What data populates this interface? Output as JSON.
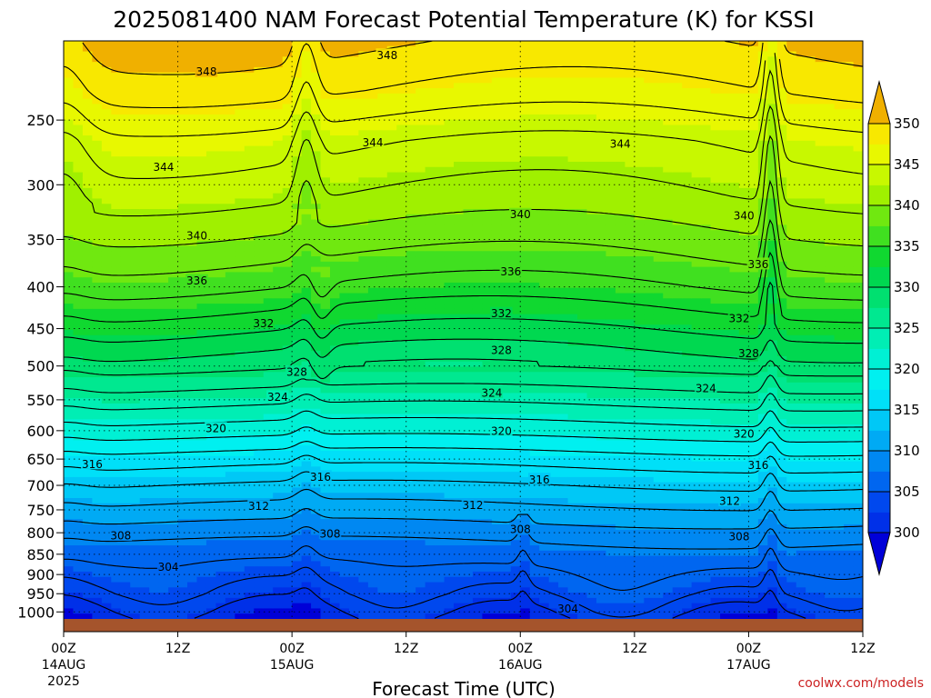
{
  "chart_data": {
    "type": "heatmap",
    "title": "2025081400 NAM Forecast Potential Temperature (K) for KSSI",
    "xlabel": "Forecast Time (UTC)",
    "credit": "coolwx.com/models",
    "x_hours_range": [
      0,
      84
    ],
    "x_ticks": [
      {
        "hour": 0,
        "label": "00Z",
        "date": "14AUG",
        "year": "2025"
      },
      {
        "hour": 12,
        "label": "12Z",
        "date": "",
        "year": ""
      },
      {
        "hour": 24,
        "label": "00Z",
        "date": "15AUG",
        "year": ""
      },
      {
        "hour": 36,
        "label": "12Z",
        "date": "",
        "year": ""
      },
      {
        "hour": 48,
        "label": "00Z",
        "date": "16AUG",
        "year": ""
      },
      {
        "hour": 60,
        "label": "12Z",
        "date": "",
        "year": ""
      },
      {
        "hour": 72,
        "label": "00Z",
        "date": "17AUG",
        "year": ""
      },
      {
        "hour": 84,
        "label": "12Z",
        "date": "",
        "year": ""
      }
    ],
    "y_ticks": [
      250,
      300,
      350,
      400,
      450,
      500,
      550,
      600,
      650,
      700,
      750,
      800,
      850,
      900,
      950,
      1000
    ],
    "ylim": [
      200,
      1020
    ],
    "ylog": true,
    "grid": true,
    "colorbar": {
      "levels": [
        300,
        302.5,
        305,
        307.5,
        310,
        312.5,
        315,
        317.5,
        320,
        322.5,
        325,
        327.5,
        330,
        332.5,
        335,
        337.5,
        340,
        342.5,
        345,
        347.5,
        350
      ],
      "labels": [
        300,
        305,
        310,
        315,
        320,
        325,
        330,
        335,
        340,
        345,
        350
      ],
      "colors": [
        "#0030e8",
        "#0048ee",
        "#0066f0",
        "#0088f2",
        "#00aaf4",
        "#00c8f6",
        "#00e0f8",
        "#00f0f0",
        "#00f0d4",
        "#00eeb4",
        "#00e890",
        "#00e070",
        "#00d850",
        "#10d830",
        "#40e020",
        "#70e810",
        "#a0f000",
        "#c8f800",
        "#e8f800",
        "#f8e800",
        "#f8c800"
      ],
      "under_color": "#0000d8",
      "over_color": "#f0b000"
    },
    "contour_interval_K": 2,
    "profile": [
      {
        "p": 200,
        "theta": 350.5
      },
      {
        "p": 230,
        "theta": 348
      },
      {
        "p": 265,
        "theta": 344.5
      },
      {
        "p": 310,
        "theta": 342
      },
      {
        "p": 340,
        "theta": 340
      },
      {
        "p": 370,
        "theta": 338
      },
      {
        "p": 400,
        "theta": 336
      },
      {
        "p": 440,
        "theta": 333
      },
      {
        "p": 480,
        "theta": 330
      },
      {
        "p": 520,
        "theta": 327
      },
      {
        "p": 560,
        "theta": 324
      },
      {
        "p": 600,
        "theta": 321
      },
      {
        "p": 650,
        "theta": 317
      },
      {
        "p": 700,
        "theta": 314
      },
      {
        "p": 760,
        "theta": 311
      },
      {
        "p": 820,
        "theta": 308
      },
      {
        "p": 880,
        "theta": 306
      },
      {
        "p": 950,
        "theta": 304
      },
      {
        "p": 1000,
        "theta": 302
      },
      {
        "p": 1020,
        "theta": 301
      }
    ],
    "contour_labels": [
      {
        "hour": 15,
        "p": 218,
        "value": "348"
      },
      {
        "hour": 34,
        "p": 208,
        "value": "348"
      },
      {
        "hour": 10.5,
        "p": 285,
        "value": "344"
      },
      {
        "hour": 32.5,
        "p": 266,
        "value": "344"
      },
      {
        "hour": 58.5,
        "p": 267,
        "value": "344"
      },
      {
        "hour": 14,
        "p": 346,
        "value": "340"
      },
      {
        "hour": 48,
        "p": 326,
        "value": "340"
      },
      {
        "hour": 71.5,
        "p": 327,
        "value": "340"
      },
      {
        "hour": 14,
        "p": 393,
        "value": "336"
      },
      {
        "hour": 47,
        "p": 383,
        "value": "336"
      },
      {
        "hour": 73,
        "p": 375,
        "value": "336"
      },
      {
        "hour": 21,
        "p": 443,
        "value": "332"
      },
      {
        "hour": 46,
        "p": 431,
        "value": "332"
      },
      {
        "hour": 71,
        "p": 437,
        "value": "332"
      },
      {
        "hour": 24.5,
        "p": 508,
        "value": "328"
      },
      {
        "hour": 46,
        "p": 478,
        "value": "328"
      },
      {
        "hour": 72,
        "p": 482,
        "value": "328"
      },
      {
        "hour": 22.5,
        "p": 545,
        "value": "324"
      },
      {
        "hour": 45,
        "p": 539,
        "value": "324"
      },
      {
        "hour": 67.5,
        "p": 532,
        "value": "324"
      },
      {
        "hour": 16,
        "p": 596,
        "value": "320"
      },
      {
        "hour": 46,
        "p": 600,
        "value": "320"
      },
      {
        "hour": 71.5,
        "p": 605,
        "value": "320"
      },
      {
        "hour": 3,
        "p": 659,
        "value": "316"
      },
      {
        "hour": 27,
        "p": 683,
        "value": "316"
      },
      {
        "hour": 50,
        "p": 688,
        "value": "316"
      },
      {
        "hour": 73,
        "p": 661,
        "value": "316"
      },
      {
        "hour": 20.5,
        "p": 741,
        "value": "312"
      },
      {
        "hour": 43,
        "p": 740,
        "value": "312"
      },
      {
        "hour": 70,
        "p": 731,
        "value": "312"
      },
      {
        "hour": 6,
        "p": 806,
        "value": "308"
      },
      {
        "hour": 28,
        "p": 802,
        "value": "308"
      },
      {
        "hour": 48,
        "p": 792,
        "value": "308"
      },
      {
        "hour": 71,
        "p": 808,
        "value": "308"
      },
      {
        "hour": 11,
        "p": 880,
        "value": "304"
      },
      {
        "hour": 53,
        "p": 990,
        "value": "304"
      }
    ]
  }
}
